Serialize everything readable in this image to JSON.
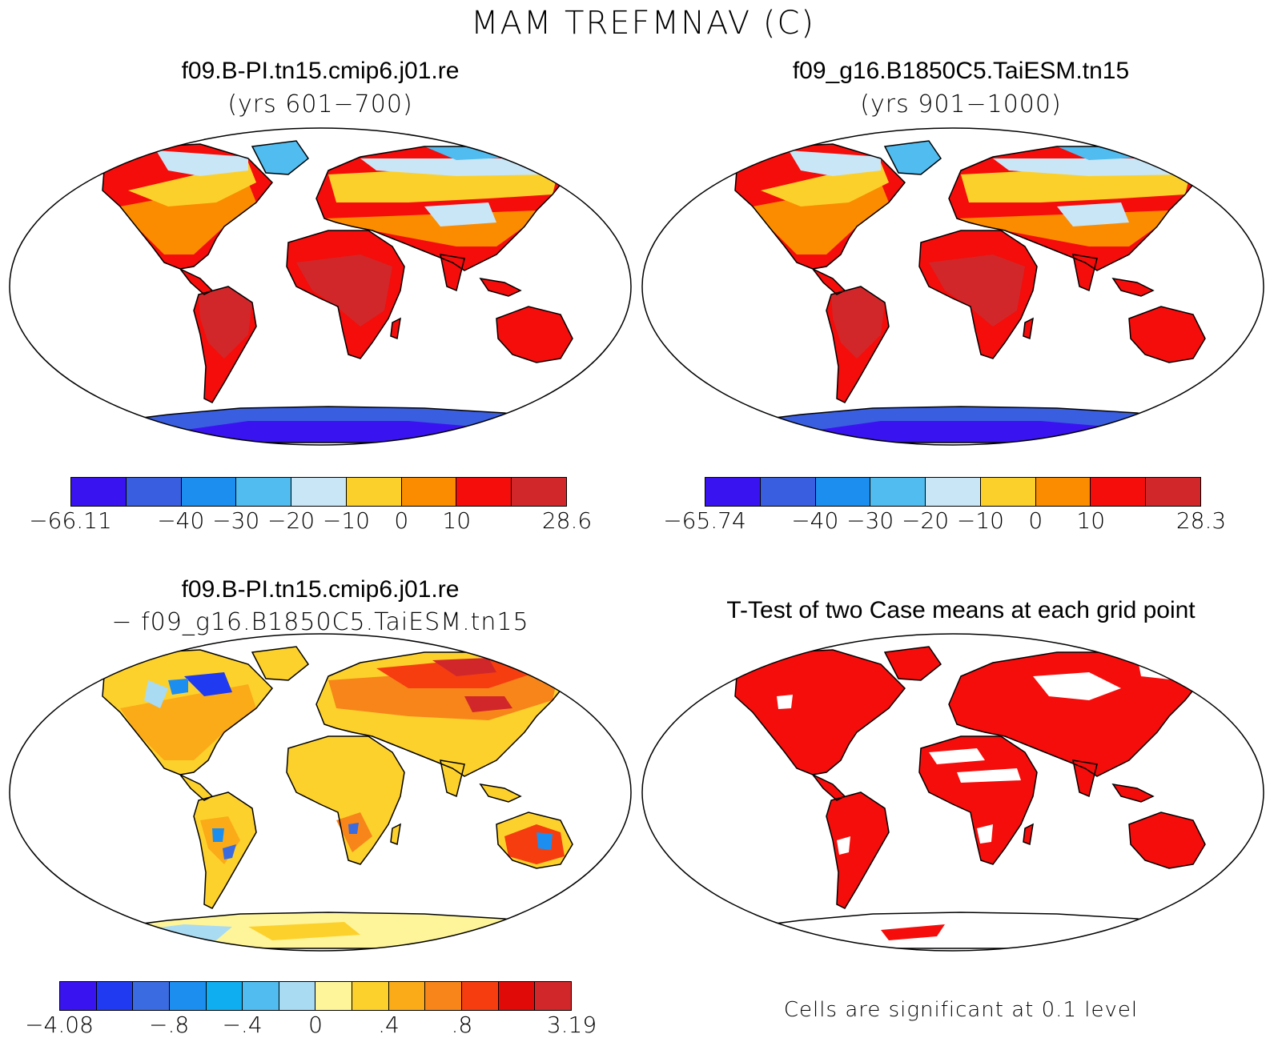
{
  "title": "MAM TREFMNAV (C)",
  "panels": {
    "top_left": {
      "title": "f09.B-PI.tn15.cmip6.j01.re",
      "subtitle": "(yrs 601−700)",
      "colorbar": {
        "colors": [
          "#3a14f0",
          "#3a5ee0",
          "#1c8ef0",
          "#50bcef",
          "#c9e6f6",
          "#fcd02a",
          "#fb8c00",
          "#f40d0a",
          "#d1272a"
        ],
        "labels": [
          "−66.11",
          "",
          "−40",
          "−30",
          "−20",
          "−10",
          "0",
          "10",
          "",
          "28.6"
        ]
      }
    },
    "top_right": {
      "title": "f09_g16.B1850C5.TaiESM.tn15",
      "subtitle": "(yrs 901−1000)",
      "colorbar": {
        "colors": [
          "#3a14f0",
          "#3a5ee0",
          "#1c8ef0",
          "#50bcef",
          "#c9e6f6",
          "#fcd02a",
          "#fb8c00",
          "#f40d0a",
          "#d1272a"
        ],
        "labels": [
          "−65.74",
          "",
          "−40",
          "−30",
          "−20",
          "−10",
          "0",
          "10",
          "",
          "28.3"
        ]
      }
    },
    "bottom_left": {
      "title": "f09.B-PI.tn15.cmip6.j01.re",
      "subtitle": "− f09_g16.B1850C5.TaiESM.tn15",
      "colorbar": {
        "colors": [
          "#3a14f0",
          "#1f3af0",
          "#3a6be0",
          "#1c8ef0",
          "#0faef0",
          "#50bcef",
          "#a9dbf3",
          "#fef59a",
          "#fdd12c",
          "#fbaa18",
          "#f7851a",
          "#f53d10",
          "#e00a08",
          "#d1272a"
        ],
        "labels": [
          "−4.08",
          "",
          "",
          "−.8",
          "",
          "−.4",
          "",
          "0",
          "",
          ".4",
          "",
          ".8",
          "",
          "",
          "3.19"
        ]
      }
    },
    "bottom_right": {
      "title": "T-Test of two Case means at each grid point",
      "note": "Cells are significant at 0.1 level",
      "significance_color": "#f40d0a"
    }
  }
}
